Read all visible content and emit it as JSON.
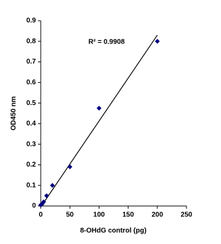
{
  "chart_data": {
    "type": "scatter",
    "xlabel": "8-OHdG control (pg)",
    "ylabel": "OD450 nm",
    "annotation": "R² = 0.9908",
    "series": [
      {
        "color": "#000080",
        "x": [
          0,
          2.5,
          5,
          10,
          20,
          50,
          100,
          200
        ],
        "values": [
          0.005,
          0.01,
          0.02,
          0.05,
          0.1,
          0.19,
          0.475,
          0.8
        ]
      }
    ],
    "trendline": {
      "color": "#000000",
      "x": [
        0,
        200
      ],
      "values": [
        -0.005,
        0.83
      ]
    },
    "xlim": [
      0,
      250
    ],
    "xticks": [
      0,
      50,
      100,
      150,
      200,
      250
    ],
    "ylim": [
      0,
      0.9
    ],
    "yticks": [
      0,
      0.1,
      0.2,
      0.3,
      0.4,
      0.5,
      0.6,
      0.7,
      0.8,
      0.9
    ]
  }
}
